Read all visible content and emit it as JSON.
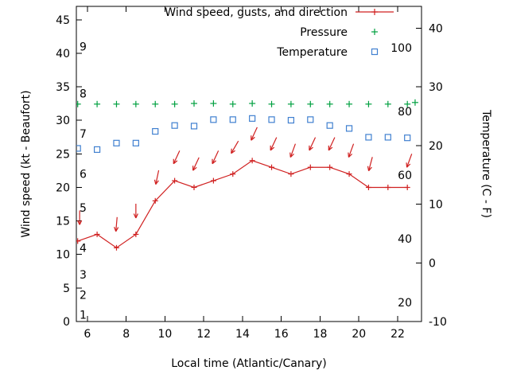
{
  "chart_data": {
    "type": "line",
    "title": "",
    "xlabel": "Local time (Atlantic/Canary)",
    "ylabel_left": "Wind speed (kt - Beaufort)",
    "ylabel_right": "Temperature (C - F)",
    "grid": false,
    "x_axis": {
      "range": [
        5.43,
        23.23
      ],
      "ticks": [
        6,
        8,
        10,
        12,
        14,
        16,
        18,
        20,
        22
      ]
    },
    "wind_axis": {
      "range": [
        0,
        47
      ],
      "ticks": [
        0,
        5,
        10,
        15,
        20,
        25,
        30,
        35,
        40,
        45
      ]
    },
    "temp_axis": {
      "range": [
        -10,
        43.7
      ],
      "ticks": [
        -10,
        0,
        10,
        20,
        30,
        40
      ]
    },
    "beaufort_scale_labels": [
      {
        "label": "1",
        "kt": 1
      },
      {
        "label": "2",
        "kt": 4
      },
      {
        "label": "3",
        "kt": 7
      },
      {
        "label": "4",
        "kt": 11
      },
      {
        "label": "5",
        "kt": 17
      },
      {
        "label": "6",
        "kt": 22
      },
      {
        "label": "7",
        "kt": 28
      },
      {
        "label": "8",
        "kt": 34
      },
      {
        "label": "9",
        "kt": 41
      }
    ],
    "right_inner_labels": [
      {
        "label": "20",
        "value": 20
      },
      {
        "label": "40",
        "value": 40
      },
      {
        "label": "60",
        "value": 60
      },
      {
        "label": "80",
        "value": 80
      },
      {
        "label": "100",
        "value": 100
      }
    ],
    "colors": {
      "wind": "#d02020",
      "pressure": "#00a040",
      "temperature": "#4080d0",
      "axis": "#000000"
    },
    "legend": {
      "position": "top-right-inside",
      "entries": [
        {
          "label": "Wind speed, gusts, and direction",
          "marker": "line-plus",
          "series": "wind_speed_kt"
        },
        {
          "label": "Pressure",
          "marker": "plus",
          "series": "pressure"
        },
        {
          "label": "Temperature",
          "marker": "open-square",
          "series": "temperature_c"
        }
      ]
    },
    "series": [
      {
        "name": "wind_speed_kt",
        "axis": "wind",
        "x": [
          5.43,
          5.5,
          6.5,
          7.5,
          8.5,
          9.5,
          10.5,
          11.5,
          12.5,
          13.5,
          14.5,
          15.5,
          16.5,
          17.5,
          18.5,
          19.5,
          20.5,
          21.5,
          22.5
        ],
        "values": [
          12,
          12,
          13,
          11,
          13,
          18,
          21,
          20,
          21,
          22,
          24,
          23,
          22,
          23,
          23,
          22,
          20,
          20,
          20
        ]
      },
      {
        "name": "gusts_kt",
        "axis": "wind",
        "x": [
          5.6,
          7.5,
          8.5,
          9.6,
          10.6,
          11.6,
          12.6,
          13.6,
          14.6,
          15.6,
          16.6,
          17.6,
          18.6,
          19.6,
          20.6,
          22.6
        ],
        "values": [
          15.5,
          14.5,
          16.5,
          21.5,
          24.5,
          23.5,
          24.5,
          26,
          28,
          26.5,
          25.5,
          26.5,
          26.5,
          25.5,
          23.5,
          24
        ],
        "arrow_angles_deg": [
          0,
          5,
          0,
          12,
          25,
          25,
          25,
          30,
          25,
          25,
          20,
          25,
          25,
          20,
          15,
          20
        ]
      },
      {
        "name": "pressure",
        "axis": "aux",
        "x": [
          5.5,
          6.5,
          7.5,
          8.5,
          9.5,
          10.5,
          11.5,
          12.5,
          13.5,
          14.5,
          15.5,
          16.5,
          17.5,
          18.5,
          19.5,
          20.5,
          21.5,
          22.5,
          22.9
        ],
        "values": [
          82.3,
          82.3,
          82.3,
          82.3,
          82.3,
          82.3,
          82.5,
          82.5,
          82.3,
          82.5,
          82.3,
          82.3,
          82.3,
          82.3,
          82.3,
          82.3,
          82.3,
          82.3,
          82.8
        ]
      },
      {
        "name": "temperature_c",
        "axis": "temp",
        "x": [
          5.5,
          6.5,
          7.5,
          8.5,
          9.5,
          10.5,
          11.5,
          12.5,
          13.5,
          14.5,
          15.5,
          16.5,
          17.5,
          18.5,
          19.5,
          20.5,
          21.5,
          22.5
        ],
        "values": [
          19.5,
          19.3,
          20.4,
          20.4,
          22.4,
          23.4,
          23.3,
          24.4,
          24.4,
          24.6,
          24.4,
          24.3,
          24.4,
          23.4,
          22.9,
          21.4,
          21.4,
          21.3
        ]
      }
    ]
  }
}
